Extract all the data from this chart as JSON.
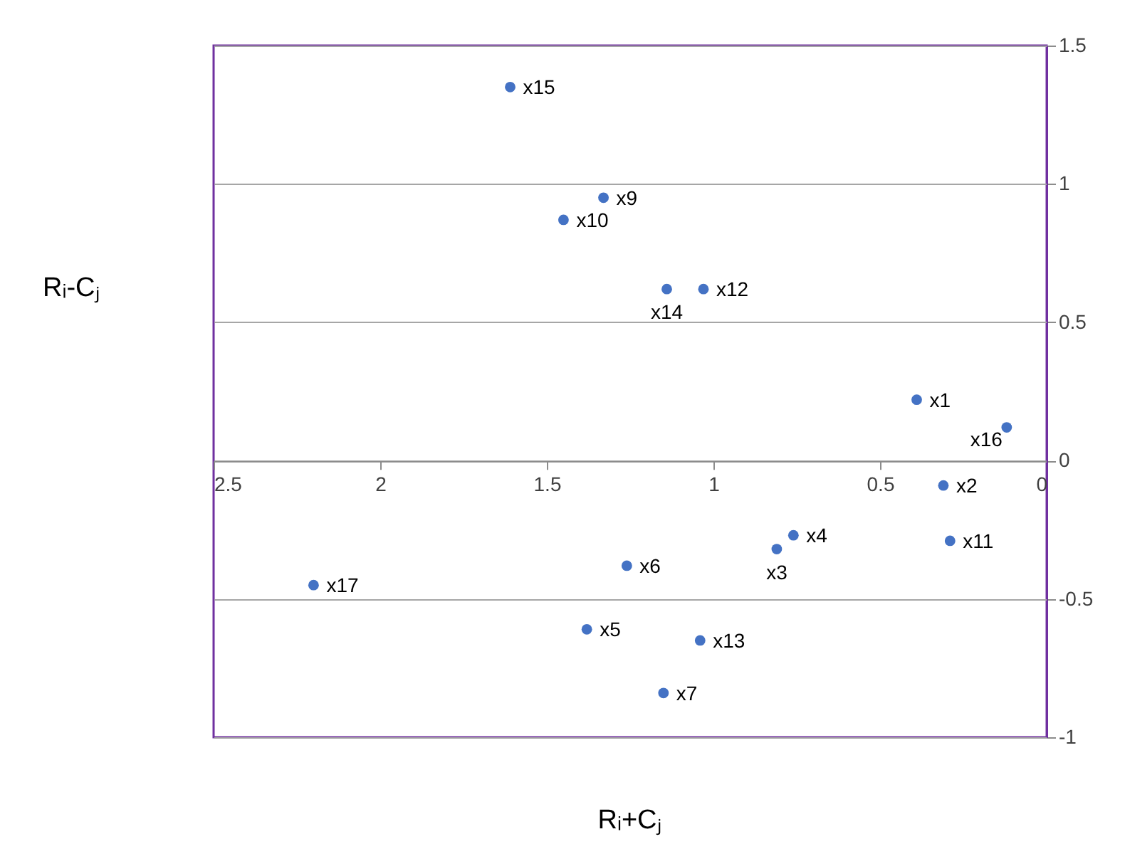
{
  "chart_data": {
    "type": "scatter",
    "xlabel": "Rᵢ+Cⱼ",
    "ylabel": "Rᵢ-Cⱼ",
    "xlim": [
      2.5,
      0
    ],
    "xticks": [
      2.5,
      2,
      1.5,
      1,
      0.5,
      0
    ],
    "ylim": [
      -1,
      1.5
    ],
    "yticks": [
      -1,
      -0.5,
      0,
      0.5,
      1,
      1.5
    ],
    "grid": "y",
    "marker": "circle",
    "legend": false,
    "series": [
      {
        "color": "#4472c4",
        "x": [
          0.39,
          0.31,
          0.81,
          0.76,
          1.38,
          1.26,
          1.15,
          1.33,
          1.45,
          0.29,
          1.03,
          1.04,
          1.14,
          1.61,
          0.12,
          2.2
        ],
        "values": [
          0.22,
          -0.09,
          -0.32,
          -0.27,
          -0.61,
          -0.38,
          -0.84,
          0.95,
          0.87,
          -0.29,
          0.62,
          -0.65,
          0.62,
          1.35,
          0.12,
          -0.45
        ]
      }
    ],
    "annotations": [
      {
        "text": "x1",
        "x": 0.39,
        "y": 0.22
      },
      {
        "text": "x2",
        "x": 0.31,
        "y": -0.09
      },
      {
        "text": "x3",
        "x": 0.81,
        "y": -0.32
      },
      {
        "text": "x4",
        "x": 0.76,
        "y": -0.27
      },
      {
        "text": "x5",
        "x": 1.38,
        "y": -0.61
      },
      {
        "text": "x6",
        "x": 1.26,
        "y": -0.38
      },
      {
        "text": "x7",
        "x": 1.15,
        "y": -0.84
      },
      {
        "text": "x9",
        "x": 1.33,
        "y": 0.95
      },
      {
        "text": "x10",
        "x": 1.45,
        "y": 0.87
      },
      {
        "text": "x11",
        "x": 0.29,
        "y": -0.29
      },
      {
        "text": "x12",
        "x": 1.03,
        "y": 0.62
      },
      {
        "text": "x13",
        "x": 1.04,
        "y": -0.65
      },
      {
        "text": "x14",
        "x": 1.14,
        "y": 0.62
      },
      {
        "text": "x15",
        "x": 1.61,
        "y": 1.35
      },
      {
        "text": "x16",
        "x": 0.12,
        "y": 0.12
      },
      {
        "text": "x17",
        "x": 2.2,
        "y": -0.45
      }
    ]
  }
}
